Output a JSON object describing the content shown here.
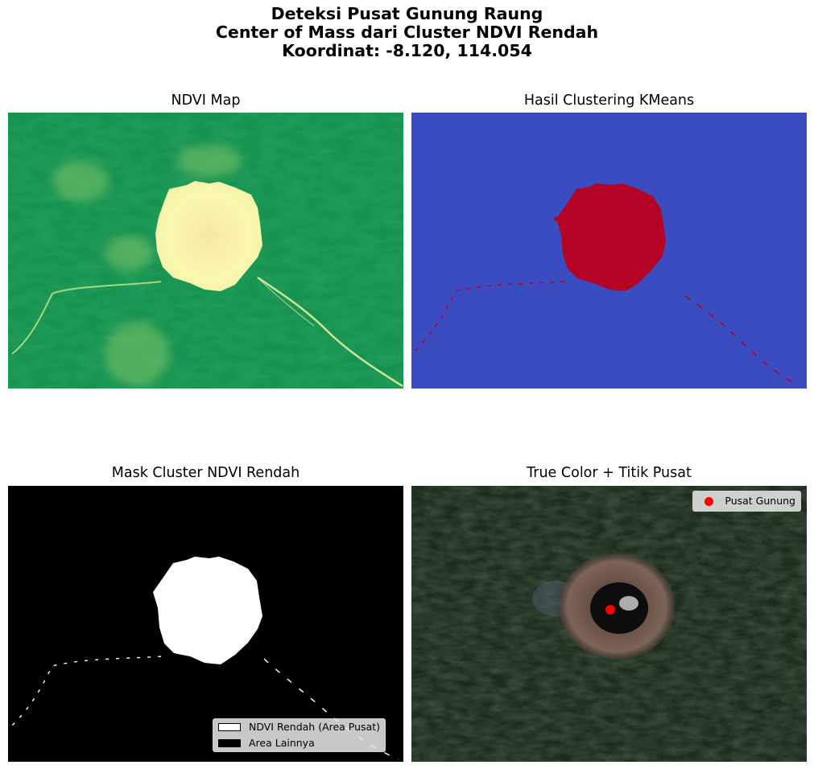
{
  "figure": {
    "suptitle_lines": [
      "Deteksi Pusat Gunung Raung",
      "Center of Mass dari Cluster NDVI Rendah",
      "Koordinat: -8.120, 114.054"
    ]
  },
  "panels": {
    "ndvi": {
      "title": "NDVI Map",
      "colors": {
        "vegetation": "#16924f",
        "bare": "#fbf7b0"
      }
    },
    "kmeans": {
      "title": "Hasil Clustering KMeans",
      "colors": {
        "background_cluster": "#3b4cc0",
        "low_ndvi_cluster": "#b40426"
      }
    },
    "mask": {
      "title": "Mask Cluster NDVI Rendah",
      "legend": [
        "NDVI Rendah (Area Pusat)",
        "Area Lainnya"
      ]
    },
    "truecolor": {
      "title": "True Color + Titik Pusat",
      "legend": [
        "Pusat Gunung"
      ],
      "colors": {
        "center_marker": "#ff0000"
      }
    }
  }
}
